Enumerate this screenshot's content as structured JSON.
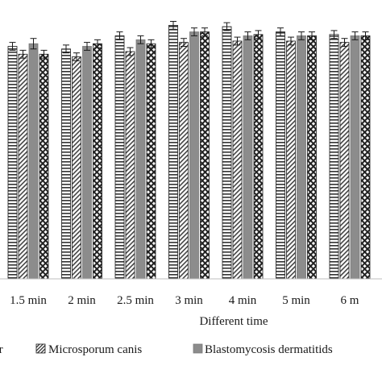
{
  "chart_data": {
    "type": "bar",
    "title": "",
    "xlabel": "Different time",
    "ylabel": "",
    "ylim": [
      0,
      100
    ],
    "grid": false,
    "legend_position": "bottom",
    "categories": [
      "1.5 min",
      "2 min",
      "2.5 min",
      "3 min",
      "4 min",
      "5 min",
      "6 m"
    ],
    "series": [
      {
        "name": "er",
        "pattern": "horizontal-lines",
        "color": "#333333",
        "values": [
          88.5,
          87.5,
          92.5,
          96.5,
          96,
          94,
          93
        ],
        "errors": [
          1.5,
          1.5,
          1.5,
          1.5,
          1.5,
          1.5,
          1.5
        ]
      },
      {
        "name": "Microsporum canis",
        "pattern": "diagonal-hatch",
        "color": "#333333",
        "values": [
          85.5,
          84.5,
          86.5,
          90,
          90.5,
          90.5,
          90
        ],
        "errors": [
          1.5,
          1.5,
          1.5,
          1.5,
          1.5,
          1.5,
          1.5
        ]
      },
      {
        "name": "Blastomycosis dermatitids",
        "pattern": "solid-gray",
        "color": "#8c8c8c",
        "values": [
          89.5,
          88.5,
          91,
          94,
          92.5,
          92.5,
          92.5
        ],
        "errors": [
          2,
          1.5,
          1.5,
          1.5,
          1.5,
          1.5,
          1.5
        ]
      },
      {
        "name": "",
        "pattern": "cross-hatch",
        "color": "#333333",
        "values": [
          85.5,
          89.5,
          89.5,
          94,
          93,
          92.5,
          92.5
        ],
        "errors": [
          1.5,
          1.5,
          1.5,
          1.5,
          1.5,
          1.5,
          1.5
        ]
      }
    ]
  }
}
